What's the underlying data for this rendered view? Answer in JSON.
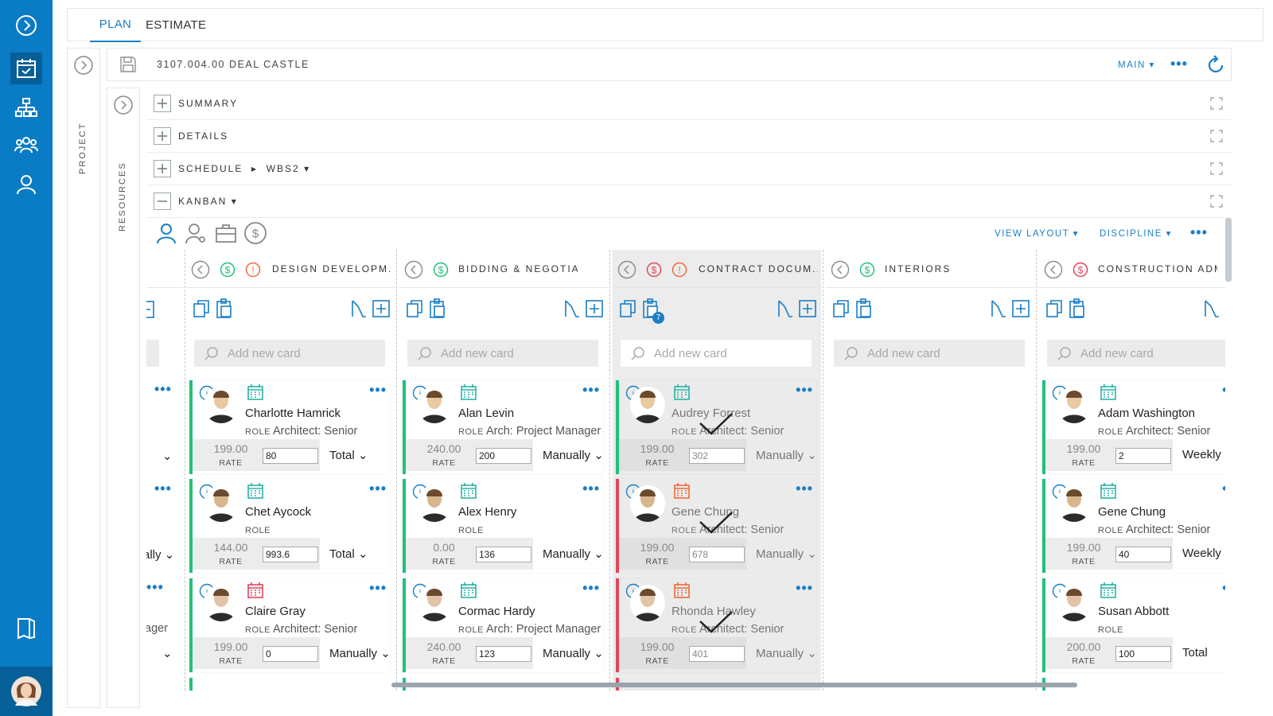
{
  "tabs": {
    "plan": "PLAN",
    "estimate": "ESTIMATE"
  },
  "header": {
    "title": "3107.004.00 DEAL CASTLE",
    "main_dropdown": "MAIN"
  },
  "strips": {
    "project": "PROJECT",
    "resources": "RESOURCES"
  },
  "sections": {
    "summary": "SUMMARY",
    "details": "DETAILS",
    "schedule": "SCHEDULE",
    "schedule_sub": "WBS2",
    "kanban": "KANBAN"
  },
  "toolbar": {
    "view_layout": "VIEW LAYOUT",
    "discipline": "DISCIPLINE"
  },
  "search_placeholder": "Add new card",
  "role_prefix": "ROLE",
  "rate_label": "RATE",
  "columns": [
    {
      "name": "DESIGN DEVELOPM...",
      "cards": [
        {
          "name": "Charlotte Hamrick",
          "role": "Architect: Senior",
          "rate": "199.00",
          "value": "80",
          "mode": "Total"
        },
        {
          "name": "Chet Aycock",
          "role": "",
          "rate": "144.00",
          "value": "993.6",
          "mode": "Total"
        },
        {
          "name": "Claire Gray",
          "role": "Architect: Senior",
          "rate": "199.00",
          "value": "0",
          "mode": "Manually"
        }
      ]
    },
    {
      "name": "BIDDING & NEGOTIATIO...",
      "cards": [
        {
          "name": "Alan Levin",
          "role": "Arch: Project Manager",
          "rate": "240.00",
          "value": "200",
          "mode": "Manually"
        },
        {
          "name": "Alex Henry",
          "role": "",
          "rate": "0.00",
          "value": "136",
          "mode": "Manually"
        },
        {
          "name": "Cormac Hardy",
          "role": "Arch: Project Manager",
          "rate": "240.00",
          "value": "123",
          "mode": "Manually"
        }
      ]
    },
    {
      "name": "CONTRACT DOCUM...",
      "badge": "7",
      "cards": [
        {
          "name": "Audrey Forrest",
          "role": "Architect: Senior",
          "rate": "199.00",
          "value": "302",
          "mode": "Manually"
        },
        {
          "name": "Gene Chung",
          "role": "Architect: Senior",
          "rate": "199.00",
          "value": "678",
          "mode": "Manually"
        },
        {
          "name": "Rhonda Hawley",
          "role": "Architect: Senior",
          "rate": "199.00",
          "value": "401",
          "mode": "Manually"
        }
      ]
    },
    {
      "name": "INTERIORS",
      "cards": []
    },
    {
      "name": "CONSTRUCTION ADMN",
      "cards": [
        {
          "name": "Adam Washington",
          "role": "Architect: Senior",
          "rate": "199.00",
          "value": "2",
          "mode": "Weekly"
        },
        {
          "name": "Gene Chung",
          "role": "Architect: Senior",
          "rate": "199.00",
          "value": "40",
          "mode": "Weekly"
        },
        {
          "name": "Susan Abbott",
          "role": "",
          "rate": "200.00",
          "value": "100",
          "mode": "Total"
        }
      ]
    }
  ],
  "partial_column": {
    "mode1": "",
    "mode2": "ally",
    "role3": "ager"
  },
  "colors": {
    "brand": "#0a7bc5",
    "accent": "#1a7fc6",
    "green": "#22c07a",
    "red": "#e1475a",
    "orange": "#f06a3a"
  }
}
